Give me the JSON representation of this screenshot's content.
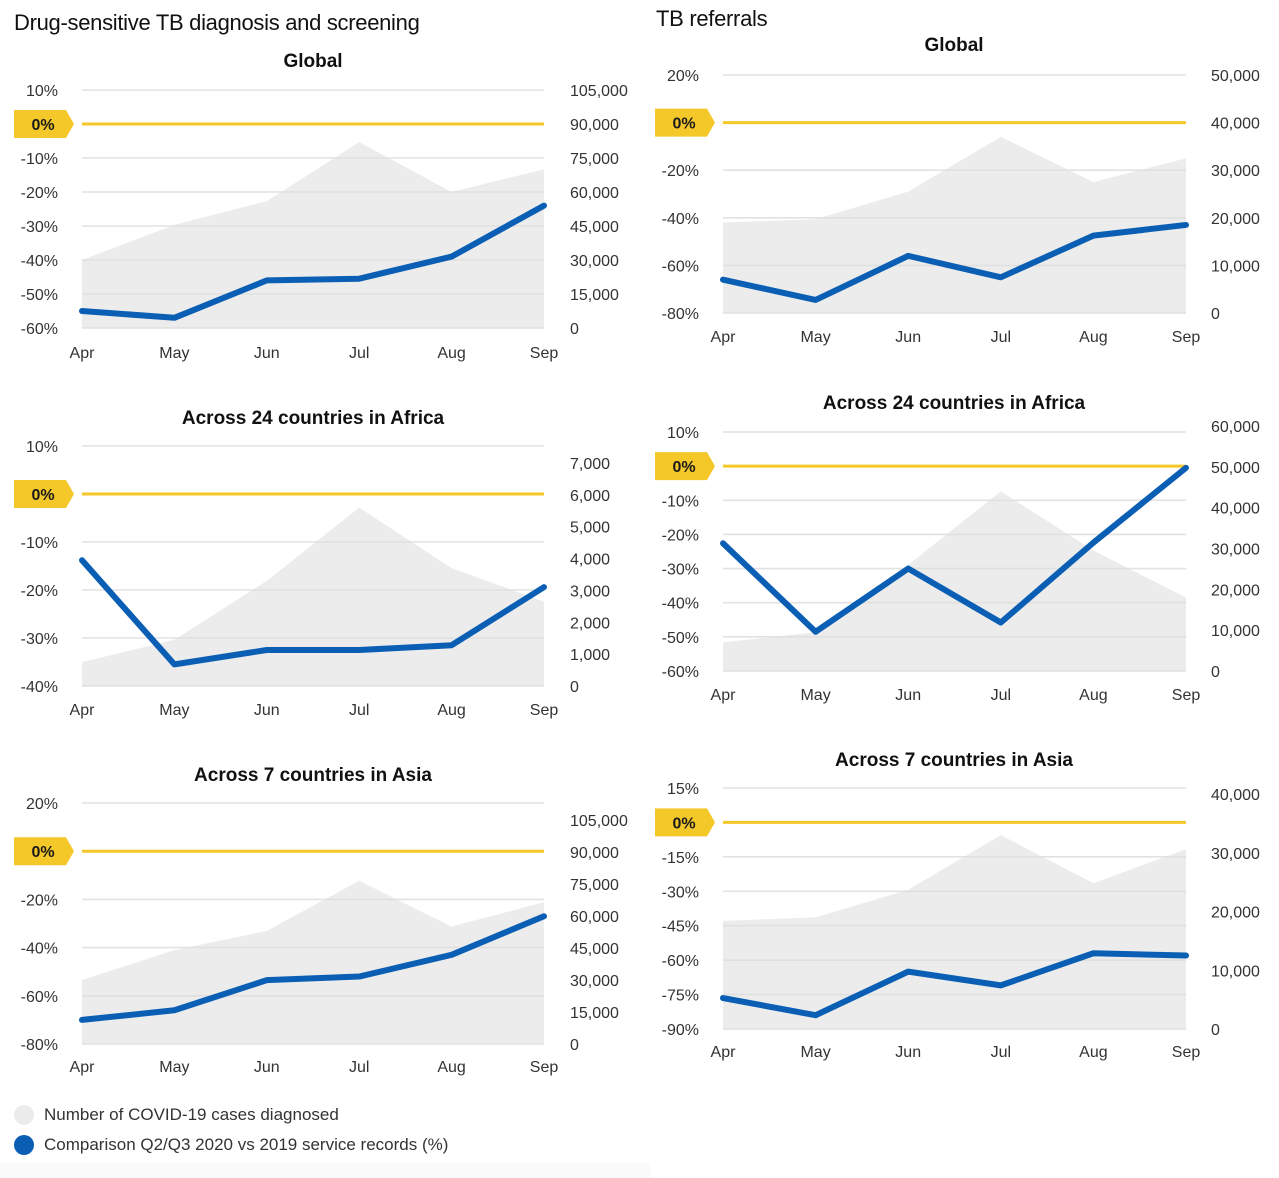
{
  "sections": {
    "left_title": "Drug-sensitive TB diagnosis and screening",
    "right_title": "TB referrals"
  },
  "colors": {
    "line": "#0a5fb4",
    "area": "#ececec",
    "zero_line": "#f5c82a",
    "badge": "#f5c82a",
    "grid": "#dedede"
  },
  "legend": {
    "items": [
      {
        "label": "Number of COVID-19 cases diagnosed",
        "color": "#ececec"
      },
      {
        "label": "Comparison Q2/Q3 2020 vs 2019 service records (%)",
        "color": "#0a5fb4"
      }
    ]
  },
  "chart_data": [
    {
      "id": "dstb-global",
      "section": "Drug-sensitive TB diagnosis and screening",
      "type": "line",
      "title": "Global",
      "categories": [
        "Apr",
        "May",
        "Jun",
        "Jul",
        "Aug",
        "Sep"
      ],
      "zero_badge": "0%",
      "left_axis": {
        "ticks": [
          10,
          0,
          -10,
          -20,
          -30,
          -40,
          -50,
          -60
        ],
        "tick_labels": [
          "10%",
          "0%",
          "-10%",
          "-20%",
          "-30%",
          "-40%",
          "-50%",
          "-60%"
        ],
        "ylim": [
          -60,
          10
        ]
      },
      "right_axis": {
        "ticks": [
          105000,
          90000,
          75000,
          60000,
          45000,
          30000,
          15000,
          0
        ],
        "tick_labels": [
          "105,000",
          "90,000",
          "75,000",
          "60,000",
          "45,000",
          "30,000",
          "15,000",
          "0"
        ],
        "ylim": [
          0,
          105000
        ]
      },
      "series": [
        {
          "name": "Number of COVID-19 cases diagnosed",
          "type": "area",
          "axis": "right",
          "values": [
            30000,
            45500,
            56000,
            82000,
            60000,
            70000
          ]
        },
        {
          "name": "Comparison Q2/Q3 2020 vs 2019 service records (%)",
          "type": "line",
          "axis": "left",
          "values": [
            -55,
            -57,
            -46,
            -45.5,
            -39,
            -24
          ]
        }
      ]
    },
    {
      "id": "referrals-global",
      "section": "TB referrals",
      "type": "line",
      "title": "Global",
      "categories": [
        "Apr",
        "May",
        "Jun",
        "Jul",
        "Aug",
        "Sep"
      ],
      "zero_badge": "0%",
      "left_axis": {
        "ticks": [
          20,
          0,
          -20,
          -40,
          -60,
          -80
        ],
        "tick_labels": [
          "20%",
          "0%",
          "-20%",
          "-40%",
          "-60%",
          "-80%"
        ],
        "ylim": [
          -80,
          20
        ]
      },
      "right_axis": {
        "ticks": [
          50000,
          40000,
          30000,
          20000,
          10000,
          0
        ],
        "tick_labels": [
          "50,000",
          "40,000",
          "30,000",
          "20,000",
          "10,000",
          "0"
        ],
        "ylim": [
          0,
          50000
        ]
      },
      "series": [
        {
          "name": "Number of COVID-19 cases diagnosed",
          "type": "area",
          "axis": "right",
          "values": [
            19000,
            19700,
            25500,
            37000,
            27500,
            32500
          ]
        },
        {
          "name": "Comparison Q2/Q3 2020 vs 2019 service records (%)",
          "type": "line",
          "axis": "left",
          "values": [
            -66,
            -74.5,
            -56,
            -65,
            -47.5,
            -43
          ]
        }
      ]
    },
    {
      "id": "dstb-africa",
      "section": "Drug-sensitive TB diagnosis and screening",
      "type": "line",
      "title": "Across 24 countries in Africa",
      "categories": [
        "Apr",
        "May",
        "Jun",
        "Jul",
        "Aug",
        "Sep"
      ],
      "zero_badge": "0%",
      "left_axis": {
        "ticks": [
          10,
          0,
          -10,
          -20,
          -30,
          -40
        ],
        "tick_labels": [
          "10%",
          "0%",
          "-10%",
          "-20%",
          "-30%",
          "-40%"
        ],
        "ylim": [
          -40,
          10
        ]
      },
      "right_axis": {
        "ticks": [
          7000,
          6000,
          5000,
          4000,
          3000,
          2000,
          1000,
          0
        ],
        "tick_labels": [
          "7,000",
          "6,000",
          "5,000",
          "4,000",
          "3,000",
          "2,000",
          "1,000",
          "0"
        ],
        "ylim": [
          0,
          7000
        ]
      },
      "series": [
        {
          "name": "Number of COVID-19 cases diagnosed",
          "type": "area",
          "axis": "right",
          "values": [
            750,
            1450,
            3300,
            5600,
            3700,
            2650
          ]
        },
        {
          "name": "Comparison Q2/Q3 2020 vs 2019 service records (%)",
          "type": "line",
          "axis": "left",
          "values": [
            -13.8,
            -35.5,
            -32.5,
            -32.5,
            -31.5,
            -19.4
          ]
        }
      ]
    },
    {
      "id": "referrals-africa",
      "section": "TB referrals",
      "type": "line",
      "title": "Across 24 countries in Africa",
      "categories": [
        "Apr",
        "May",
        "Jun",
        "Jul",
        "Aug",
        "Sep"
      ],
      "zero_badge": "0%",
      "left_axis": {
        "ticks": [
          10,
          0,
          -10,
          -20,
          -30,
          -40,
          -50,
          -60
        ],
        "tick_labels": [
          "10%",
          "0%",
          "-10%",
          "-20%",
          "-30%",
          "-40%",
          "-50%",
          "-60%"
        ],
        "ylim": [
          -60,
          10
        ]
      },
      "right_axis": {
        "ticks": [
          60000,
          50000,
          40000,
          30000,
          20000,
          10000,
          0
        ],
        "tick_labels": [
          "60,000",
          "50,000",
          "40,000",
          "30,000",
          "20,000",
          "10,000",
          "0"
        ],
        "ylim": [
          0,
          60000
        ]
      },
      "series": [
        {
          "name": "Number of COVID-19 cases diagnosed",
          "type": "area",
          "axis": "right",
          "values": [
            7000,
            9500,
            26000,
            44000,
            29500,
            18000
          ]
        },
        {
          "name": "Comparison Q2/Q3 2020 vs 2019 service records (%)",
          "type": "line",
          "axis": "left",
          "values": [
            -22.6,
            -48.5,
            -30,
            -45.8,
            -22.4,
            -0.5
          ]
        }
      ]
    },
    {
      "id": "dstb-asia",
      "section": "Drug-sensitive TB diagnosis and screening",
      "type": "line",
      "title": "Across 7 countries in Asia",
      "categories": [
        "Apr",
        "May",
        "Jun",
        "Jul",
        "Aug",
        "Sep"
      ],
      "zero_badge": "0%",
      "left_axis": {
        "ticks": [
          20,
          0,
          -20,
          -40,
          -60,
          -80
        ],
        "tick_labels": [
          "20%",
          "0%",
          "-20%",
          "-40%",
          "-60%",
          "-80%"
        ],
        "ylim": [
          -80,
          20
        ]
      },
      "right_axis": {
        "ticks": [
          105000,
          90000,
          75000,
          60000,
          45000,
          30000,
          15000,
          0
        ],
        "tick_labels": [
          "105,000",
          "90,000",
          "75,000",
          "60,000",
          "45,000",
          "30,000",
          "15,000",
          "0"
        ],
        "ylim": [
          0,
          105000
        ]
      },
      "series": [
        {
          "name": "Number of COVID-19 cases diagnosed",
          "type": "area",
          "axis": "right",
          "values": [
            30000,
            44000,
            53000,
            76500,
            55000,
            66500
          ]
        },
        {
          "name": "Comparison Q2/Q3 2020 vs 2019 service records (%)",
          "type": "line",
          "axis": "left",
          "values": [
            -70,
            -66,
            -53.5,
            -52,
            -43,
            -27
          ]
        }
      ]
    },
    {
      "id": "referrals-asia",
      "section": "TB referrals",
      "type": "line",
      "title": "Across 7 countries in Asia",
      "categories": [
        "Apr",
        "May",
        "Jun",
        "Jul",
        "Aug",
        "Sep"
      ],
      "zero_badge": "0%",
      "left_axis": {
        "ticks": [
          15,
          0,
          -15,
          -30,
          -45,
          -60,
          -75,
          -90
        ],
        "tick_labels": [
          "15%",
          "0%",
          "-15%",
          "-30%",
          "-45%",
          "-60%",
          "-75%",
          "-90%"
        ],
        "ylim": [
          -90,
          15
        ]
      },
      "right_axis": {
        "ticks": [
          40000,
          30000,
          20000,
          10000,
          0
        ],
        "tick_labels": [
          "40,000",
          "30,000",
          "20,000",
          "10,000",
          "0"
        ],
        "ylim": [
          0,
          40000
        ]
      },
      "series": [
        {
          "name": "Number of COVID-19 cases diagnosed",
          "type": "area",
          "axis": "right",
          "values": [
            18400,
            19000,
            23700,
            33000,
            24800,
            30600
          ]
        },
        {
          "name": "Comparison Q2/Q3 2020 vs 2019 service records (%)",
          "type": "line",
          "axis": "left",
          "values": [
            -76.5,
            -84,
            -65,
            -71,
            -57,
            -58
          ]
        }
      ]
    }
  ]
}
